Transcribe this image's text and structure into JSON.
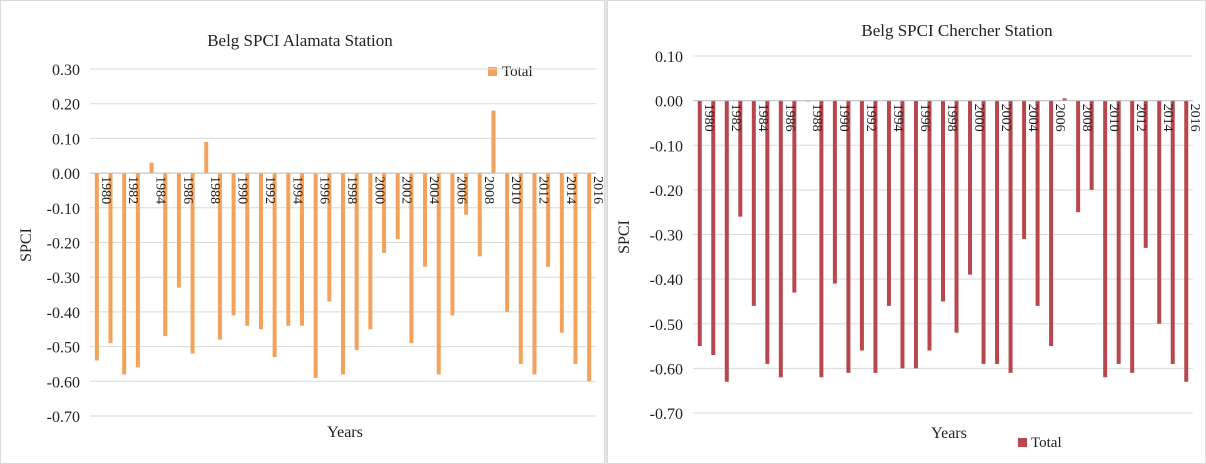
{
  "chart_data": [
    {
      "type": "bar",
      "title": "Belg SPCI Alamata Station",
      "xlabel": "Years",
      "ylabel": "SPCI",
      "ylim": [
        -0.7,
        0.3
      ],
      "yticks": [
        0.3,
        0.2,
        0.1,
        0.0,
        -0.1,
        -0.2,
        -0.3,
        -0.4,
        -0.5,
        -0.6,
        -0.7
      ],
      "ytick_labels": [
        "0.30",
        "0.20",
        "0.10",
        "0.00",
        "-0.10",
        "-0.20",
        "-0.30",
        "-0.40",
        "-0.50",
        "-0.60",
        "-0.70"
      ],
      "grid": true,
      "legend_position": "top-right",
      "color": "#F2A25A",
      "categories": [
        "1980",
        "1981",
        "1982",
        "1983",
        "1984",
        "1985",
        "1986",
        "1987",
        "1988",
        "1989",
        "1990",
        "1991",
        "1992",
        "1993",
        "1994",
        "1995",
        "1996",
        "1997",
        "1998",
        "1999",
        "2000",
        "2001",
        "2002",
        "2003",
        "2004",
        "2005",
        "2006",
        "2007",
        "2008",
        "2009",
        "2010",
        "2011",
        "2012",
        "2013",
        "2014",
        "2015",
        "2016"
      ],
      "tick_labels": [
        "1980",
        "1982",
        "1984",
        "1986",
        "1988",
        "1990",
        "1992",
        "1994",
        "1996",
        "1998",
        "2000",
        "2002",
        "2004",
        "2006",
        "2008",
        "2010",
        "2012",
        "2014",
        "2016"
      ],
      "series": [
        {
          "name": "Total",
          "values": [
            -0.54,
            -0.49,
            -0.58,
            -0.56,
            0.03,
            -0.47,
            -0.33,
            -0.52,
            0.09,
            -0.48,
            -0.41,
            -0.44,
            -0.45,
            -0.53,
            -0.44,
            -0.44,
            -0.59,
            -0.37,
            -0.58,
            -0.51,
            -0.45,
            -0.23,
            -0.19,
            -0.49,
            -0.27,
            -0.58,
            -0.41,
            -0.12,
            -0.24,
            0.18,
            -0.4,
            -0.55,
            -0.58,
            -0.27,
            -0.46,
            -0.55,
            -0.6
          ]
        }
      ]
    },
    {
      "type": "bar",
      "title": "Belg SPCI Chercher Station",
      "xlabel": "Years",
      "ylabel": "SPCI",
      "ylim": [
        -0.7,
        0.1
      ],
      "yticks": [
        0.1,
        0.0,
        -0.1,
        -0.2,
        -0.3,
        -0.4,
        -0.5,
        -0.6,
        -0.7
      ],
      "ytick_labels": [
        "0.10",
        "0.00",
        "-0.10",
        "-0.20",
        "-0.30",
        "-0.40",
        "-0.50",
        "-0.60",
        "-0.70"
      ],
      "grid": true,
      "legend_position": "bottom-right",
      "color": "#B8474D",
      "categories": [
        "1980",
        "1981",
        "1982",
        "1983",
        "1984",
        "1985",
        "1986",
        "1987",
        "1988",
        "1989",
        "1990",
        "1991",
        "1992",
        "1993",
        "1994",
        "1995",
        "1996",
        "1997",
        "1998",
        "1999",
        "2000",
        "2001",
        "2002",
        "2003",
        "2004",
        "2005",
        "2006",
        "2007",
        "2008",
        "2009",
        "2010",
        "2011",
        "2012",
        "2013",
        "2014",
        "2015",
        "2016"
      ],
      "tick_labels": [
        "1980",
        "1982",
        "1984",
        "1986",
        "1988",
        "1990",
        "1992",
        "1994",
        "1996",
        "1998",
        "2000",
        "2002",
        "2004",
        "2006",
        "2008",
        "2010",
        "2012",
        "2014",
        "2016"
      ],
      "series": [
        {
          "name": "Total",
          "values": [
            -0.55,
            -0.57,
            -0.63,
            -0.26,
            -0.46,
            -0.59,
            -0.62,
            -0.43,
            0.0,
            -0.62,
            -0.41,
            -0.61,
            -0.56,
            -0.61,
            -0.46,
            -0.6,
            -0.6,
            -0.56,
            -0.45,
            -0.52,
            -0.39,
            -0.59,
            -0.59,
            -0.61,
            -0.31,
            -0.46,
            -0.55,
            0.005,
            -0.25,
            -0.2,
            -0.62,
            -0.59,
            -0.61,
            -0.33,
            -0.5,
            -0.59,
            -0.63
          ]
        }
      ]
    }
  ]
}
